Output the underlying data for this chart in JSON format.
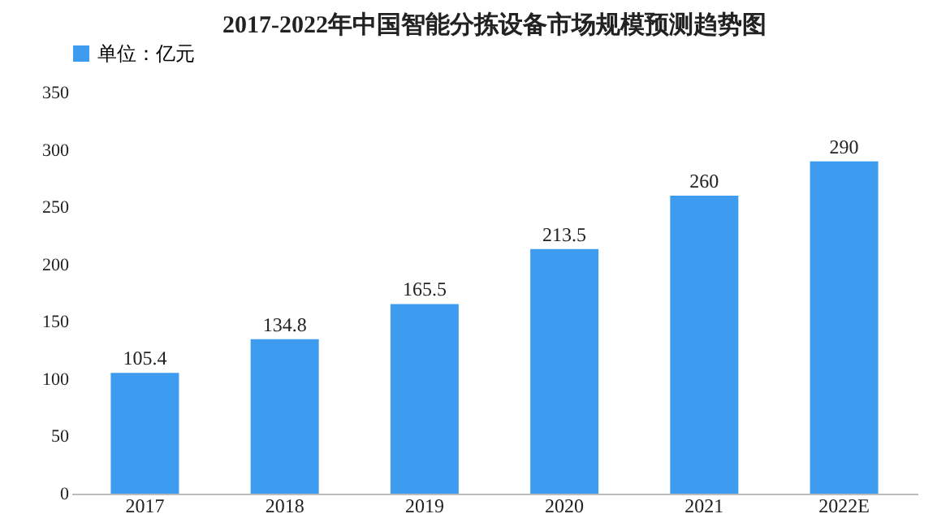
{
  "chart_data": {
    "type": "bar",
    "title": "2017-2022年中国智能分拣设备市场规模预测趋势图",
    "categories": [
      "2017",
      "2018",
      "2019",
      "2020",
      "2021",
      "2022E"
    ],
    "series": [
      {
        "name": "单位：亿元",
        "color": "#3d9cf0",
        "values": [
          105.4,
          134.8,
          165.5,
          213.5,
          260,
          290
        ]
      }
    ],
    "ylim": [
      0,
      350
    ],
    "yticks": [
      0,
      50,
      100,
      150,
      200,
      250,
      300,
      350
    ],
    "grid": false,
    "legend": "top",
    "data_labels": true
  }
}
